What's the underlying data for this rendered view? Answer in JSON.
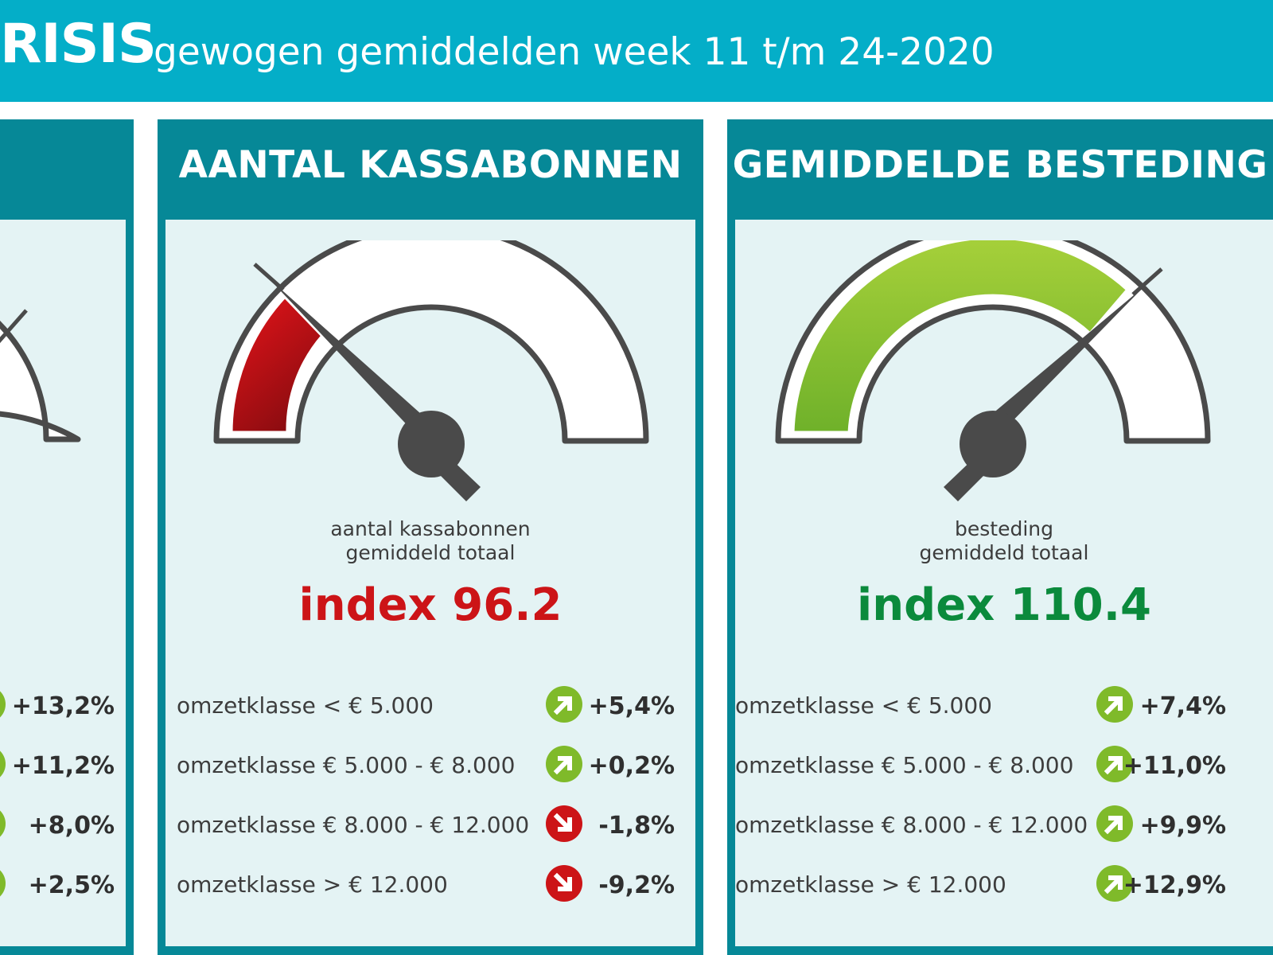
{
  "header": {
    "title_fragment": "RISIS",
    "subtitle": "gewogen gemiddelden week 11 t/m 24-2020"
  },
  "colors": {
    "banner": "#04aec8",
    "panel_frame": "#068897",
    "panel_body": "#e4f3f4",
    "index_down": "#cc1417",
    "index_up": "#0b8a3c",
    "arrow_up": "#7fba2a",
    "arrow_down": "#cc1417"
  },
  "left_panel": {
    "rows": [
      {
        "value": "+13,2%",
        "direction": "up",
        "icon": "arrow-up-right-icon"
      },
      {
        "value": "+11,2%",
        "direction": "up",
        "icon": "arrow-up-right-icon"
      },
      {
        "value": "+8,0%",
        "direction": "up",
        "icon": "arrow-up-right-icon"
      },
      {
        "value": "+2,5%",
        "direction": "up",
        "icon": "arrow-up-right-icon"
      }
    ]
  },
  "kassabonnen": {
    "title": "AANTAL KASSABONNEN",
    "caption_line1": "aantal kassabonnen",
    "caption_line2": "gemiddeld totaal",
    "index_text": "index 96.2",
    "index_value": 96.2,
    "index_color": "#cc1417",
    "gauge_fill_color": "red",
    "rows": [
      {
        "label": "omzetklasse < € 5.000",
        "value": "+5,4%",
        "direction": "up",
        "icon": "arrow-up-right-icon"
      },
      {
        "label": "omzetklasse € 5.000 - € 8.000",
        "value": "+0,2%",
        "direction": "up",
        "icon": "arrow-up-right-icon"
      },
      {
        "label": "omzetklasse € 8.000 - € 12.000",
        "value": "-1,8%",
        "direction": "down",
        "icon": "arrow-down-right-icon"
      },
      {
        "label": "omzetklasse > € 12.000",
        "value": "-9,2%",
        "direction": "down",
        "icon": "arrow-down-right-icon"
      }
    ]
  },
  "besteding": {
    "title": "GEMIDDELDE BESTEDING",
    "caption_line1": "besteding",
    "caption_line2": "gemiddeld totaal",
    "index_text": "index 110.4",
    "index_value": 110.4,
    "index_color": "#0b8a3c",
    "gauge_fill_color": "green",
    "rows": [
      {
        "label": "omzetklasse < € 5.000",
        "value": "+7,4%",
        "direction": "up",
        "icon": "arrow-up-right-icon"
      },
      {
        "label": "omzetklasse € 5.000 - € 8.000",
        "value": "+11,0%",
        "direction": "up",
        "icon": "arrow-up-right-icon"
      },
      {
        "label": "omzetklasse € 8.000 - € 12.000",
        "value": "+9,9%",
        "direction": "up",
        "icon": "arrow-up-right-icon"
      },
      {
        "label": "omzetklasse > € 12.000",
        "value": "+12,9%",
        "direction": "up",
        "icon": "arrow-up-right-icon"
      }
    ]
  }
}
